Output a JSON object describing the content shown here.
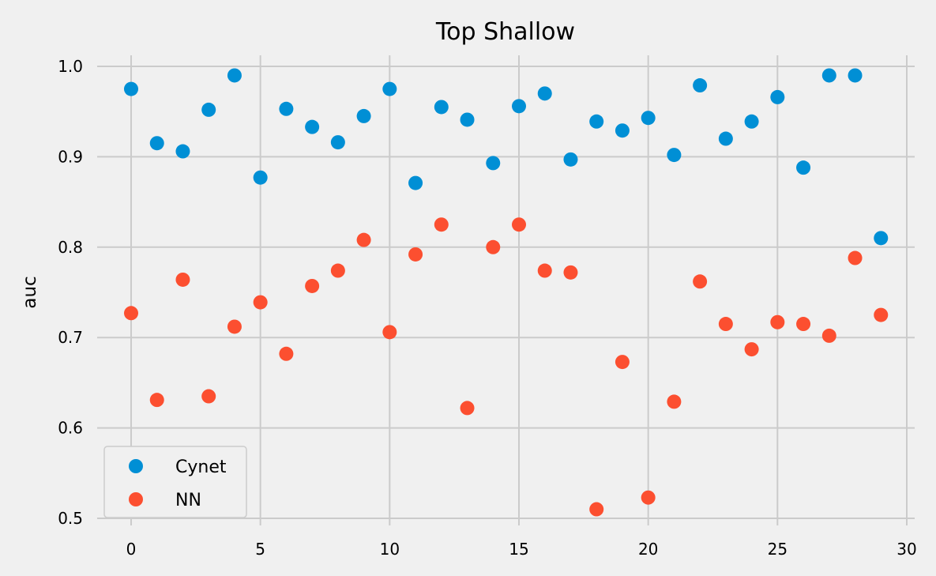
{
  "chart_data": {
    "type": "scatter",
    "title": "Top Shallow",
    "xlabel": "",
    "ylabel": "auc",
    "xlim": [
      -1.3,
      30.3
    ],
    "ylim": [
      0.5,
      1.0
    ],
    "xticks": [
      0,
      5,
      10,
      15,
      20,
      25,
      30
    ],
    "yticks": [
      0.5,
      0.6,
      0.7,
      0.8,
      0.9,
      1.0
    ],
    "ytick_labels": [
      "0.5",
      "0.6",
      "0.7",
      "0.8",
      "0.9",
      "1.0"
    ],
    "grid": true,
    "legend_position": "lower-left",
    "x": [
      0,
      1,
      2,
      3,
      4,
      5,
      6,
      7,
      8,
      9,
      10,
      11,
      12,
      13,
      14,
      15,
      16,
      17,
      18,
      19,
      20,
      21,
      22,
      23,
      24,
      25,
      26,
      27,
      28,
      29
    ],
    "series": [
      {
        "name": "Cynet",
        "color": "#008fd5",
        "values": [
          0.975,
          0.915,
          0.906,
          0.952,
          0.99,
          0.877,
          0.953,
          0.933,
          0.916,
          0.945,
          0.975,
          0.871,
          0.955,
          0.941,
          0.893,
          0.956,
          0.97,
          0.897,
          0.939,
          0.929,
          0.943,
          0.902,
          0.979,
          0.92,
          0.939,
          0.966,
          0.888,
          0.99,
          0.99,
          0.81
        ]
      },
      {
        "name": "NN",
        "color": "#fc4f30",
        "values": [
          0.727,
          0.631,
          0.764,
          0.635,
          0.712,
          0.739,
          0.682,
          0.757,
          0.774,
          0.808,
          0.706,
          0.792,
          0.825,
          0.622,
          0.8,
          0.825,
          0.774,
          0.772,
          0.51,
          0.673,
          0.523,
          0.629,
          0.762,
          0.715,
          0.687,
          0.717,
          0.715,
          0.702,
          0.788,
          0.725
        ]
      }
    ]
  }
}
